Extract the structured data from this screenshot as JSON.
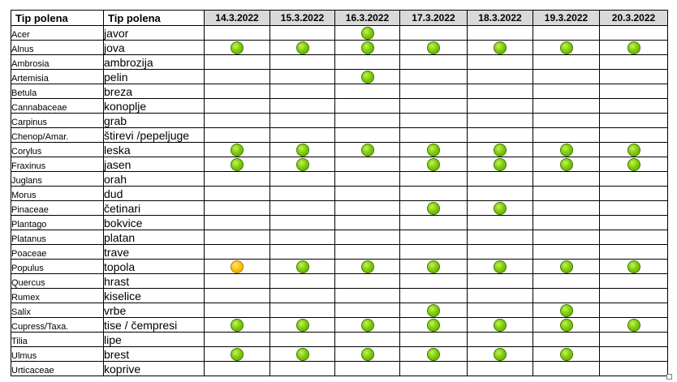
{
  "headers": {
    "latin": "Tip polena",
    "local": "Tip polena",
    "dates": [
      "14.3.2022",
      "15.3.2022",
      "16.3.2022",
      "17.3.2022",
      "18.3.2022",
      "19.3.2022",
      "20.3.2022"
    ]
  },
  "legend_colors": {
    "green": "#82cc0e",
    "yellow": "#ffc20e"
  },
  "rows": [
    {
      "latin": "Acer",
      "local": "javor",
      "latin_flag": false,
      "local_flag": true,
      "levels": [
        "",
        "",
        "green",
        "",
        "",
        "",
        ""
      ]
    },
    {
      "latin": "Alnus",
      "local": "jova",
      "latin_flag": true,
      "local_flag": true,
      "levels": [
        "green",
        "green",
        "green",
        "green",
        "green",
        "green",
        "green"
      ]
    },
    {
      "latin": "Ambrosia",
      "local": "ambrozija",
      "latin_flag": false,
      "local_flag": true,
      "levels": [
        "",
        "",
        "",
        "",
        "",
        "",
        ""
      ]
    },
    {
      "latin": "Artemisia",
      "local": "pelin",
      "latin_flag": false,
      "local_flag": false,
      "levels": [
        "",
        "",
        "green",
        "",
        "",
        "",
        ""
      ]
    },
    {
      "latin": "Betula",
      "local": "breza",
      "latin_flag": true,
      "local_flag": false,
      "levels": [
        "",
        "",
        "",
        "",
        "",
        "",
        ""
      ]
    },
    {
      "latin": "Cannabaceae",
      "local": "konoplje",
      "latin_flag": true,
      "local_flag": true,
      "levels": [
        "",
        "",
        "",
        "",
        "",
        "",
        ""
      ]
    },
    {
      "latin": "Carpinus",
      "local": "grab",
      "latin_flag": true,
      "local_flag": false,
      "levels": [
        "",
        "",
        "",
        "",
        "",
        "",
        ""
      ]
    },
    {
      "latin": "Chenop/Amar.",
      "local": "štirevi /pepeljuge",
      "latin_flag": true,
      "local_flag": true,
      "levels": [
        "",
        "",
        "",
        "",
        "",
        "",
        ""
      ]
    },
    {
      "latin": "Corylus",
      "local": "leska",
      "latin_flag": false,
      "local_flag": true,
      "levels": [
        "green",
        "green",
        "green",
        "green",
        "green",
        "green",
        "green"
      ]
    },
    {
      "latin": "Fraxinus",
      "local": "jasen",
      "latin_flag": true,
      "local_flag": true,
      "levels": [
        "green",
        "green",
        "",
        "green",
        "green",
        "green",
        "green"
      ]
    },
    {
      "latin": "Juglans",
      "local": "orah",
      "latin_flag": true,
      "local_flag": true,
      "levels": [
        "",
        "",
        "",
        "",
        "",
        "",
        ""
      ]
    },
    {
      "latin": "Morus",
      "local": "dud",
      "latin_flag": true,
      "local_flag": false,
      "levels": [
        "",
        "",
        "",
        "",
        "",
        "",
        ""
      ]
    },
    {
      "latin": "Pinaceae",
      "local": "četinari",
      "latin_flag": true,
      "local_flag": true,
      "levels": [
        "",
        "",
        "",
        "green",
        "green",
        "",
        ""
      ]
    },
    {
      "latin": "Plantago",
      "local": "bokvice",
      "latin_flag": true,
      "local_flag": true,
      "levels": [
        "",
        "",
        "",
        "",
        "",
        "",
        ""
      ]
    },
    {
      "latin": "Platanus",
      "local": "platan",
      "latin_flag": true,
      "local_flag": true,
      "levels": [
        "",
        "",
        "",
        "",
        "",
        "",
        ""
      ]
    },
    {
      "latin": "Poaceae",
      "local": "trave",
      "latin_flag": true,
      "local_flag": true,
      "levels": [
        "",
        "",
        "",
        "",
        "",
        "",
        ""
      ]
    },
    {
      "latin": "Populus",
      "local": "topola",
      "latin_flag": true,
      "local_flag": true,
      "levels": [
        "yellow",
        "green",
        "green",
        "green",
        "green",
        "green",
        "green"
      ]
    },
    {
      "latin": "Quercus",
      "local": "hrast",
      "latin_flag": true,
      "local_flag": false,
      "levels": [
        "",
        "",
        "",
        "",
        "",
        "",
        ""
      ]
    },
    {
      "latin": "Rumex",
      "local": "kiselice",
      "latin_flag": true,
      "local_flag": true,
      "levels": [
        "",
        "",
        "",
        "",
        "",
        "",
        ""
      ]
    },
    {
      "latin": "Salix",
      "local": "vrbe",
      "latin_flag": false,
      "local_flag": true,
      "levels": [
        "",
        "",
        "",
        "green",
        "",
        "green",
        ""
      ]
    },
    {
      "latin": "Cupress/Taxa.",
      "local": "tise / čempresi",
      "latin_flag": true,
      "local_flag": true,
      "levels": [
        "green",
        "green",
        "green",
        "green",
        "green",
        "green",
        "green"
      ]
    },
    {
      "latin": "Tilia",
      "local": "lipe",
      "latin_flag": true,
      "local_flag": true,
      "levels": [
        "",
        "",
        "",
        "",
        "",
        "",
        ""
      ]
    },
    {
      "latin": "Ulmus",
      "local": "brest",
      "latin_flag": true,
      "local_flag": true,
      "levels": [
        "green",
        "green",
        "green",
        "green",
        "green",
        "green",
        ""
      ]
    },
    {
      "latin": "Urticaceae",
      "local": "koprive",
      "latin_flag": true,
      "local_flag": true,
      "levels": [
        "",
        "",
        "",
        "",
        "",
        "",
        ""
      ]
    }
  ]
}
